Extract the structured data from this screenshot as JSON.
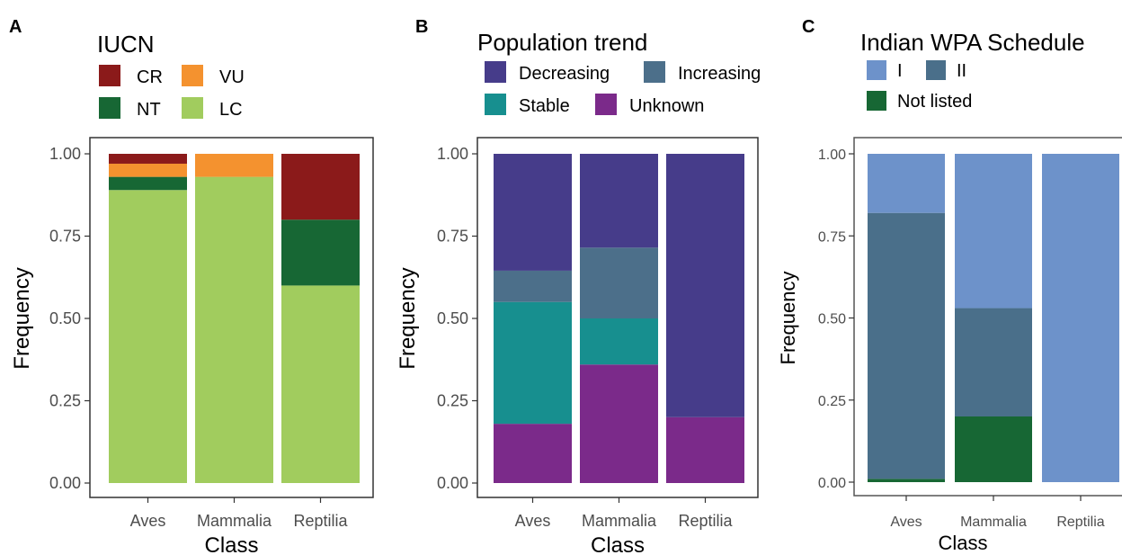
{
  "chart_data": [
    {
      "panel": "A",
      "type": "bar",
      "stacked": true,
      "legend_title": "IUCN",
      "legend_order": [
        "CR",
        "VU",
        "NT",
        "LC"
      ],
      "categories": [
        "Aves",
        "Mammalia",
        "Reptilia"
      ],
      "series": [
        {
          "name": "CR",
          "color": "#8B1A1A",
          "values": [
            0.03,
            0.0,
            0.2
          ]
        },
        {
          "name": "VU",
          "color": "#F4922F",
          "values": [
            0.04,
            0.07,
            0.0
          ]
        },
        {
          "name": "NT",
          "color": "#176734",
          "values": [
            0.04,
            0.0,
            0.2
          ]
        },
        {
          "name": "LC",
          "color": "#A1CC5E",
          "values": [
            0.89,
            0.93,
            0.6
          ]
        }
      ],
      "stack_order": [
        "LC",
        "NT",
        "VU",
        "CR"
      ],
      "xlabel": "Class",
      "ylabel": "Frequency",
      "yticks": [
        "0.00",
        "0.25",
        "0.50",
        "0.75",
        "1.00"
      ],
      "ylim": [
        0,
        1
      ]
    },
    {
      "panel": "B",
      "type": "bar",
      "stacked": true,
      "legend_title": "Population trend",
      "legend_order": [
        "Decreasing",
        "Increasing",
        "Stable",
        "Unknown"
      ],
      "categories": [
        "Aves",
        "Mammalia",
        "Reptilia"
      ],
      "series": [
        {
          "name": "Decreasing",
          "color": "#463C8A",
          "values": [
            0.355,
            0.285,
            0.8
          ]
        },
        {
          "name": "Increasing",
          "color": "#4C6F8A",
          "values": [
            0.095,
            0.215,
            0.0
          ]
        },
        {
          "name": "Stable",
          "color": "#178F8F",
          "values": [
            0.37,
            0.14,
            0.0
          ]
        },
        {
          "name": "Unknown",
          "color": "#7B2A8A",
          "values": [
            0.18,
            0.36,
            0.2
          ]
        }
      ],
      "stack_order": [
        "Unknown",
        "Stable",
        "Increasing",
        "Decreasing"
      ],
      "xlabel": "Class",
      "ylabel": "Frequency",
      "yticks": [
        "0.00",
        "0.25",
        "0.50",
        "0.75",
        "1.00"
      ],
      "ylim": [
        0,
        1
      ]
    },
    {
      "panel": "C",
      "type": "bar",
      "stacked": true,
      "legend_title": "Indian WPA Schedule",
      "legend_order": [
        "I",
        "II",
        "Not listed"
      ],
      "categories": [
        "Aves",
        "Mammalia",
        "Reptilia"
      ],
      "series": [
        {
          "name": "I",
          "color": "#6D92CA",
          "values": [
            0.18,
            0.47,
            1.0
          ]
        },
        {
          "name": "II",
          "color": "#4A6F8A",
          "values": [
            0.81,
            0.33,
            0.0
          ]
        },
        {
          "name": "Not listed",
          "color": "#176734",
          "values": [
            0.01,
            0.2,
            0.0
          ]
        }
      ],
      "stack_order": [
        "Not listed",
        "II",
        "I"
      ],
      "xlabel": "Class",
      "ylabel": "Frequency",
      "yticks": [
        "0.00",
        "0.25",
        "0.50",
        "0.75",
        "1.00"
      ],
      "ylim": [
        0,
        1
      ]
    }
  ]
}
